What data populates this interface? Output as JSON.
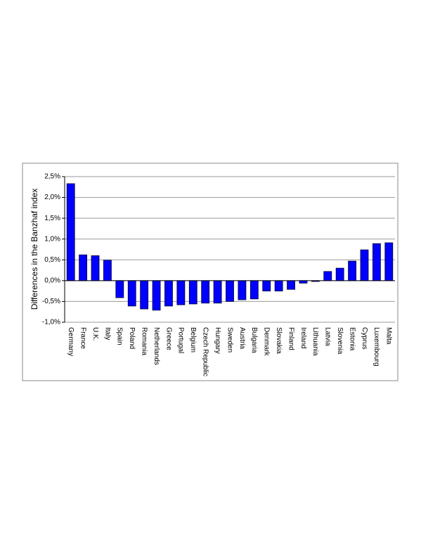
{
  "chart_data": {
    "type": "bar",
    "y_label": "Differences in the Banzhaf index",
    "categories": [
      "Germany",
      "France",
      "U.K.",
      "Italy",
      "Spain",
      "Poland",
      "Romania",
      "Netherlands",
      "Greece",
      "Portugal",
      "Belgium",
      "Czech Republic",
      "Hungary",
      "Sweden",
      "Austria",
      "Bulgaria",
      "Denmark",
      "Slovakia",
      "Finland",
      "Ireland",
      "Lithuania",
      "Latvia",
      "Slovenia",
      "Estonia",
      "Cyprus",
      "Luxembourg",
      "Malta"
    ],
    "values": [
      2.33,
      0.62,
      0.6,
      0.49,
      -0.41,
      -0.61,
      -0.68,
      -0.71,
      -0.61,
      -0.58,
      -0.56,
      -0.54,
      -0.54,
      -0.5,
      -0.46,
      -0.44,
      -0.25,
      -0.25,
      -0.21,
      -0.06,
      -0.02,
      0.22,
      0.3,
      0.47,
      0.74,
      0.89,
      0.91
    ],
    "color": "#0000ff",
    "ylim": [
      -1,
      2.5
    ],
    "yticks": [
      {
        "value": -1,
        "label": "-1,0%"
      },
      {
        "value": -0.5,
        "label": "-0,5%"
      },
      {
        "value": 0,
        "label": "0,0%"
      },
      {
        "value": 0.5,
        "label": "0,5%"
      },
      {
        "value": 1,
        "label": "1,0%"
      },
      {
        "value": 1.5,
        "label": "1,5%"
      },
      {
        "value": 2,
        "label": "2,0%"
      },
      {
        "value": 2.5,
        "label": "2,5%"
      }
    ],
    "grid": true
  }
}
